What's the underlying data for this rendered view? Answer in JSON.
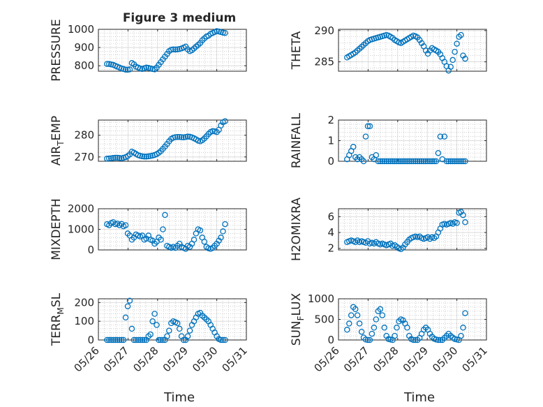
{
  "figure_title": "Figure 3 medium",
  "colors": {
    "marker": "#0072BD",
    "axis": "#262626",
    "grid": "#b0b0b0"
  },
  "chart_data": [
    {
      "type": "scatter",
      "ylabel": "PRESSURE",
      "xlim": [
        "05/26",
        "05/31"
      ],
      "ylim": [
        770,
        1000
      ],
      "yticks": [
        800,
        900,
        1000
      ],
      "x_days": [
        0.29,
        0.36,
        0.43,
        0.5,
        0.57,
        0.64,
        0.71,
        0.78,
        0.85,
        0.92,
        0.99,
        1.06,
        1.13,
        1.2,
        1.27,
        1.34,
        1.41,
        1.48,
        1.55,
        1.62,
        1.69,
        1.76,
        1.83,
        1.9,
        1.97,
        2.04,
        2.11,
        2.18,
        2.25,
        2.32,
        2.39,
        2.46,
        2.53,
        2.6,
        2.67,
        2.74,
        2.81,
        2.88,
        2.95,
        3.02,
        3.09,
        3.16,
        3.23,
        3.3,
        3.37,
        3.44,
        3.51,
        3.58,
        3.65,
        3.72,
        3.79,
        3.86,
        3.93,
        4.0,
        4.07,
        4.14,
        4.21,
        4.28
      ],
      "values": [
        810,
        810,
        807,
        805,
        800,
        795,
        790,
        785,
        782,
        779,
        778,
        780,
        815,
        808,
        795,
        790,
        785,
        782,
        786,
        790,
        788,
        785,
        782,
        780,
        790,
        805,
        820,
        835,
        850,
        865,
        880,
        888,
        890,
        889,
        890,
        892,
        895,
        900,
        905,
        890,
        880,
        885,
        895,
        905,
        915,
        925,
        940,
        950,
        960,
        965,
        975,
        980,
        985,
        990,
        988,
        985,
        982,
        980
      ]
    },
    {
      "type": "scatter",
      "ylabel": "THETA",
      "xlim": [
        "05/26",
        "05/31"
      ],
      "ylim": [
        283.5,
        290.2
      ],
      "yticks": [
        285,
        290
      ],
      "x_days": [
        0.29,
        0.36,
        0.43,
        0.5,
        0.57,
        0.64,
        0.71,
        0.78,
        0.85,
        0.92,
        0.99,
        1.06,
        1.13,
        1.2,
        1.27,
        1.34,
        1.41,
        1.48,
        1.55,
        1.62,
        1.69,
        1.76,
        1.83,
        1.9,
        1.97,
        2.04,
        2.11,
        2.18,
        2.25,
        2.32,
        2.39,
        2.46,
        2.53,
        2.6,
        2.67,
        2.74,
        2.81,
        2.88,
        2.95,
        3.02,
        3.09,
        3.16,
        3.23,
        3.3,
        3.37,
        3.44,
        3.51,
        3.58,
        3.65,
        3.72,
        3.79,
        3.86,
        3.93,
        4.0,
        4.07,
        4.14,
        4.21,
        4.28
      ],
      "values": [
        285.7,
        285.9,
        286.1,
        286.3,
        286.5,
        286.8,
        287.1,
        287.4,
        287.7,
        288.0,
        288.3,
        288.5,
        288.6,
        288.7,
        288.8,
        288.9,
        289.0,
        289.1,
        289.2,
        289.3,
        289.2,
        289.0,
        288.8,
        288.5,
        288.3,
        288.1,
        288.0,
        288.2,
        288.4,
        288.6,
        288.8,
        289.0,
        289.2,
        289.1,
        288.9,
        288.5,
        288.0,
        287.5,
        286.8,
        286.3,
        286.8,
        287.2,
        287.0,
        286.8,
        286.6,
        286.2,
        285.6,
        285.0,
        284.3,
        283.6,
        284.2,
        285.3,
        286.6,
        287.9,
        289.0,
        289.3,
        286.0,
        285.5
      ]
    },
    {
      "type": "scatter",
      "ylabel": "AIR_TEMP",
      "ylabel_main": "AIR",
      "ylabel_sub": "T",
      "ylabel_tail": "EMP",
      "xlim": [
        "05/26",
        "05/31"
      ],
      "ylim": [
        268,
        287
      ],
      "yticks": [
        270,
        280
      ],
      "x_days": [
        0.29,
        0.36,
        0.43,
        0.5,
        0.57,
        0.64,
        0.71,
        0.78,
        0.85,
        0.92,
        0.99,
        1.06,
        1.13,
        1.2,
        1.27,
        1.34,
        1.41,
        1.48,
        1.55,
        1.62,
        1.69,
        1.76,
        1.83,
        1.9,
        1.97,
        2.04,
        2.11,
        2.18,
        2.25,
        2.32,
        2.39,
        2.46,
        2.53,
        2.6,
        2.67,
        2.74,
        2.81,
        2.88,
        2.95,
        3.02,
        3.09,
        3.16,
        3.23,
        3.3,
        3.37,
        3.44,
        3.51,
        3.58,
        3.65,
        3.72,
        3.79,
        3.86,
        3.93,
        4.0,
        4.07,
        4.14,
        4.21,
        4.28
      ],
      "values": [
        269.2,
        269.3,
        269.4,
        269.5,
        269.6,
        269.6,
        269.5,
        269.4,
        269.6,
        269.9,
        270.4,
        271.2,
        272.4,
        272.0,
        271.4,
        270.8,
        270.5,
        270.3,
        270.2,
        270.2,
        270.3,
        270.4,
        270.6,
        270.9,
        271.3,
        271.9,
        272.7,
        273.7,
        274.8,
        276.0,
        277.2,
        278.3,
        278.9,
        279.1,
        279.2,
        279.2,
        279.1,
        279.0,
        279.2,
        279.4,
        279.3,
        279.0,
        278.6,
        278.1,
        277.5,
        277.2,
        277.7,
        278.5,
        279.5,
        280.6,
        281.5,
        281.9,
        281.8,
        281.5,
        282.5,
        284.5,
        286.0,
        286.5
      ]
    },
    {
      "type": "scatter",
      "ylabel": "RAINFALL",
      "xlim": [
        "05/26",
        "05/31"
      ],
      "ylim": [
        0,
        2
      ],
      "yticks": [
        0,
        1,
        2
      ],
      "x_days": [
        0.29,
        0.36,
        0.43,
        0.5,
        0.57,
        0.64,
        0.71,
        0.78,
        0.85,
        0.92,
        0.99,
        1.06,
        1.13,
        1.2,
        1.27,
        1.34,
        1.41,
        1.48,
        1.55,
        1.62,
        1.69,
        1.76,
        1.83,
        1.9,
        1.97,
        2.04,
        2.11,
        2.18,
        2.25,
        2.32,
        2.39,
        2.46,
        2.53,
        2.6,
        2.67,
        2.74,
        2.81,
        2.88,
        2.95,
        3.02,
        3.09,
        3.16,
        3.23,
        3.3,
        3.37,
        3.44,
        3.51,
        3.58,
        3.65,
        3.72,
        3.79,
        3.86,
        3.93,
        4.0,
        4.07,
        4.14,
        4.21,
        4.28
      ],
      "values": [
        0.1,
        0.3,
        0.5,
        0.7,
        0.2,
        0.1,
        0.2,
        0.1,
        0.0,
        1.2,
        1.7,
        1.7,
        0.2,
        0.1,
        0.3,
        0.0,
        0.0,
        0.0,
        0.0,
        0.0,
        0.0,
        0.0,
        0.0,
        0.0,
        0.0,
        0.0,
        0.0,
        0.0,
        0.0,
        0.0,
        0.0,
        0.0,
        0.0,
        0.0,
        0.0,
        0.0,
        0.0,
        0.0,
        0.0,
        0.0,
        0.0,
        0.0,
        0.0,
        0.0,
        0.4,
        1.2,
        0.1,
        1.2,
        0.0,
        0.0,
        0.0,
        0.0,
        0.0,
        0.0,
        0.0,
        0.0,
        0.0,
        0.0
      ]
    },
    {
      "type": "scatter",
      "ylabel": "MIXDEPTH",
      "xlim": [
        "05/26",
        "05/31"
      ],
      "ylim": [
        0,
        2000
      ],
      "yticks": [
        0,
        1000,
        2000
      ],
      "x_days": [
        0.29,
        0.36,
        0.43,
        0.5,
        0.57,
        0.64,
        0.71,
        0.78,
        0.85,
        0.92,
        0.99,
        1.06,
        1.13,
        1.2,
        1.27,
        1.34,
        1.41,
        1.48,
        1.55,
        1.62,
        1.69,
        1.76,
        1.83,
        1.9,
        1.97,
        2.04,
        2.11,
        2.18,
        2.25,
        2.32,
        2.39,
        2.46,
        2.53,
        2.6,
        2.67,
        2.74,
        2.81,
        2.88,
        2.95,
        3.02,
        3.09,
        3.16,
        3.23,
        3.3,
        3.37,
        3.44,
        3.51,
        3.58,
        3.65,
        3.72,
        3.79,
        3.86,
        3.93,
        4.0,
        4.07,
        4.14,
        4.21,
        4.28
      ],
      "values": [
        1250,
        1200,
        1300,
        1350,
        1250,
        1280,
        1200,
        1260,
        1150,
        1200,
        800,
        700,
        500,
        600,
        750,
        700,
        650,
        700,
        500,
        550,
        700,
        500,
        450,
        300,
        400,
        600,
        500,
        1000,
        1700,
        200,
        150,
        100,
        150,
        100,
        200,
        300,
        150,
        100,
        50,
        200,
        150,
        300,
        500,
        800,
        1000,
        950,
        600,
        400,
        150,
        80,
        50,
        100,
        200,
        300,
        450,
        600,
        900,
        1250
      ]
    },
    {
      "type": "scatter",
      "ylabel": "H2OMIXRA",
      "xlim": [
        "05/26",
        "05/31"
      ],
      "ylim": [
        1.8,
        7
      ],
      "yticks": [
        2,
        4,
        6
      ],
      "x_days": [
        0.29,
        0.36,
        0.43,
        0.5,
        0.57,
        0.64,
        0.71,
        0.78,
        0.85,
        0.92,
        0.99,
        1.06,
        1.13,
        1.2,
        1.27,
        1.34,
        1.41,
        1.48,
        1.55,
        1.62,
        1.69,
        1.76,
        1.83,
        1.9,
        1.97,
        2.04,
        2.11,
        2.18,
        2.25,
        2.32,
        2.39,
        2.46,
        2.53,
        2.6,
        2.67,
        2.74,
        2.81,
        2.88,
        2.95,
        3.02,
        3.09,
        3.16,
        3.23,
        3.3,
        3.37,
        3.44,
        3.51,
        3.58,
        3.65,
        3.72,
        3.79,
        3.86,
        3.93,
        4.0,
        4.07,
        4.14,
        4.21,
        4.28
      ],
      "values": [
        2.8,
        2.9,
        3.0,
        2.9,
        2.8,
        3.0,
        2.8,
        2.9,
        2.8,
        2.7,
        2.9,
        2.6,
        2.7,
        2.6,
        2.8,
        2.6,
        2.5,
        2.6,
        2.5,
        2.4,
        2.5,
        2.6,
        2.3,
        2.4,
        2.2,
        2.0,
        1.9,
        2.1,
        2.5,
        2.8,
        3.1,
        3.3,
        3.4,
        3.5,
        3.4,
        3.5,
        3.3,
        3.2,
        3.3,
        3.4,
        3.2,
        3.4,
        3.3,
        3.5,
        4.0,
        4.5,
        5.0,
        5.1,
        5.0,
        5.1,
        5.2,
        5.1,
        5.3,
        5.2,
        6.5,
        6.6,
        6.2,
        5.3
      ]
    },
    {
      "type": "scatter",
      "ylabel": "TERR_MSL",
      "ylabel_main": "TERR",
      "ylabel_sub": "M",
      "ylabel_tail": "SL",
      "xlim": [
        "05/26",
        "05/31"
      ],
      "ylim": [
        0,
        220
      ],
      "yticks": [
        0,
        100,
        200
      ],
      "x_days": [
        0.29,
        0.36,
        0.43,
        0.5,
        0.57,
        0.64,
        0.71,
        0.78,
        0.85,
        0.92,
        0.99,
        1.06,
        1.13,
        1.2,
        1.27,
        1.34,
        1.41,
        1.48,
        1.55,
        1.62,
        1.69,
        1.76,
        1.83,
        1.9,
        1.97,
        2.04,
        2.11,
        2.18,
        2.25,
        2.32,
        2.39,
        2.46,
        2.53,
        2.6,
        2.67,
        2.74,
        2.81,
        2.88,
        2.95,
        3.02,
        3.09,
        3.16,
        3.23,
        3.3,
        3.37,
        3.44,
        3.51,
        3.58,
        3.65,
        3.72,
        3.79,
        3.86,
        3.93,
        4.0,
        4.07,
        4.14,
        4.21,
        4.28
      ],
      "values": [
        0,
        0,
        0,
        0,
        0,
        0,
        0,
        0,
        0,
        120,
        180,
        210,
        60,
        0,
        0,
        0,
        0,
        0,
        0,
        0,
        20,
        30,
        100,
        140,
        80,
        0,
        0,
        0,
        0,
        20,
        50,
        90,
        100,
        95,
        90,
        60,
        20,
        0,
        0,
        20,
        50,
        80,
        100,
        120,
        140,
        145,
        130,
        120,
        110,
        100,
        80,
        60,
        40,
        20,
        5,
        0,
        0,
        0
      ]
    },
    {
      "type": "scatter",
      "ylabel": "SUN_FLUX",
      "ylabel_main": "SUN",
      "ylabel_sub": "F",
      "ylabel_tail": "LUX",
      "xlim": [
        "05/26",
        "05/31"
      ],
      "ylim": [
        0,
        1000
      ],
      "yticks": [
        0,
        500,
        1000
      ],
      "x_days": [
        0.29,
        0.36,
        0.43,
        0.5,
        0.57,
        0.64,
        0.71,
        0.78,
        0.85,
        0.92,
        0.99,
        1.06,
        1.13,
        1.2,
        1.27,
        1.34,
        1.41,
        1.48,
        1.55,
        1.62,
        1.69,
        1.76,
        1.83,
        1.9,
        1.97,
        2.04,
        2.11,
        2.18,
        2.25,
        2.32,
        2.39,
        2.46,
        2.53,
        2.6,
        2.67,
        2.74,
        2.81,
        2.88,
        2.95,
        3.02,
        3.09,
        3.16,
        3.23,
        3.3,
        3.37,
        3.44,
        3.51,
        3.58,
        3.65,
        3.72,
        3.79,
        3.86,
        3.93,
        4.0,
        4.07,
        4.14,
        4.21,
        4.28
      ],
      "values": [
        250,
        400,
        600,
        800,
        750,
        600,
        400,
        200,
        60,
        10,
        0,
        0,
        150,
        300,
        500,
        700,
        750,
        600,
        300,
        100,
        20,
        10,
        0,
        100,
        300,
        450,
        500,
        480,
        400,
        300,
        100,
        20,
        0,
        0,
        0,
        50,
        150,
        250,
        300,
        250,
        150,
        80,
        30,
        10,
        0,
        0,
        0,
        50,
        100,
        150,
        100,
        60,
        20,
        10,
        0,
        100,
        300,
        650
      ]
    }
  ],
  "x_tick_labels": [
    "05/26",
    "05/27",
    "05/28",
    "05/29",
    "05/30",
    "05/31"
  ],
  "xlabels": {
    "left": "Time",
    "right": "Time"
  }
}
